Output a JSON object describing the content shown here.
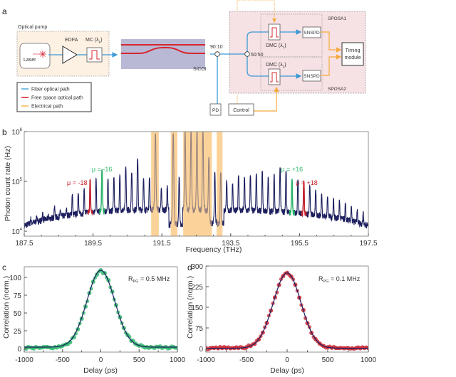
{
  "panel_labels": {
    "a": "a",
    "b": "b",
    "c": "c",
    "d": "d"
  },
  "diagram": {
    "optical_pump": "Optical pump",
    "laser": "Laser",
    "edfa": "EDFA",
    "mc": "MC (λ",
    "mc_sub": "p",
    "mc_close": ")",
    "chip": "SiCOI",
    "splitter1": "90:10",
    "splitter2": "50:50",
    "dmc1": "DMC (λ",
    "dmc1_sub": "1",
    "dmc1_close": ")",
    "dmc2": "DMC (λ",
    "dmc2_sub": "2",
    "dmc2_close": ")",
    "snspd1": "SNSPD",
    "snspd2": "SNSPD",
    "timing1": "Timing",
    "timing2": "module",
    "sposa1": "SPOSA1",
    "sposa2": "SPOSA2",
    "pd": "PD",
    "control": "Control",
    "legend": [
      {
        "label": "Fiber optical path",
        "color": "#3b9ad6"
      },
      {
        "label": "Free space optical path",
        "color": "#d7262e"
      },
      {
        "label": "Electrical path",
        "color": "#f5a93b"
      }
    ]
  },
  "colors": {
    "fiber": "#3b9ad6",
    "free_space": "#d7262e",
    "electrical": "#f5a93b",
    "spectrum": "#1d1f5e",
    "green": "#2bb56a",
    "red": "#c8202c",
    "band": "#fbd39a"
  },
  "chart_data": [
    {
      "panel": "b",
      "type": "line",
      "xlabel": "Frequency (THz)",
      "ylabel": "Photon count rate (Hz)",
      "xlim": [
        187.5,
        197.5
      ],
      "ylim": [
        8000,
        1000000
      ],
      "yscale": "log",
      "xticks": [
        "187.5",
        "189.5",
        "191.5",
        "193.5",
        "195.5",
        "197.5"
      ],
      "yticks": [
        {
          "base": "10",
          "exp": "4"
        },
        {
          "base": "10",
          "exp": "5"
        },
        {
          "base": "10",
          "exp": "6"
        }
      ],
      "comb_center_thz": 192.52,
      "comb_spacing_thz": 0.1725,
      "mode_range": [
        -28,
        29
      ],
      "peak_rates": [
        18000,
        20000,
        23000,
        20000,
        32000,
        26000,
        28000,
        55000,
        60000,
        70000,
        105000,
        115000,
        170000,
        110000,
        120000,
        130000,
        190000,
        150000,
        280000,
        110000,
        120000,
        900000,
        70000,
        80000,
        900000,
        120000,
        1000000,
        1000000,
        1000000,
        1000000,
        300000,
        150000,
        150000,
        100000,
        90000,
        130000,
        120000,
        130000,
        140000,
        160000,
        120000,
        140000,
        190000,
        160000,
        110000,
        105000,
        100000,
        80000,
        65000,
        55000,
        50000,
        45000,
        40000,
        35000,
        30000,
        26000,
        24000,
        22000
      ],
      "filtered_bands_thz": [
        [
          191.19,
          191.41
        ],
        [
          191.76,
          191.95
        ],
        [
          192.12,
          192.95
        ],
        [
          193.09,
          193.26
        ]
      ],
      "annotations": [
        {
          "text": "μ = -18",
          "mode": -18,
          "color": "#c8202c"
        },
        {
          "text": "μ = -16",
          "mode": -16,
          "color": "#2bb56a"
        },
        {
          "text": "μ = +16",
          "mode": 16,
          "color": "#2bb56a"
        },
        {
          "text": "μ = +18",
          "mode": 18,
          "color": "#c8202c"
        }
      ]
    },
    {
      "panel": "c",
      "type": "scatter",
      "xlabel": "Delay (ps)",
      "ylabel": "Correlation (norm.)",
      "xlim": [
        -1000,
        1000
      ],
      "ylim": [
        -5,
        115
      ],
      "xticks": [
        "-1000",
        "-500",
        "0",
        "500",
        "1000"
      ],
      "yticks": [
        "0",
        "25",
        "50",
        "75",
        "100"
      ],
      "annotation": {
        "main": "R",
        "sub": "PG",
        "rest": " = 0.5 MHz"
      },
      "x_step_ps": 50,
      "points": [
        1,
        2,
        1,
        2,
        1,
        2,
        2,
        1,
        2,
        3,
        4,
        6,
        9,
        16,
        27,
        42,
        59,
        78,
        94,
        104,
        110,
        106,
        96,
        80,
        61,
        44,
        29,
        19,
        11,
        7,
        4,
        3,
        2,
        2,
        1,
        2,
        1,
        2,
        1,
        2,
        1
      ],
      "fit": {
        "type": "gaussian",
        "amplitude": 108,
        "center": 0,
        "sigma": 180,
        "offset": 2
      },
      "marker_color": "#2bb56a",
      "fit_color": "#1d1f5e"
    },
    {
      "panel": "d",
      "type": "scatter",
      "xlabel": "Delay (ps)",
      "ylabel": "Correlation (norm.)",
      "xlim": [
        -1000,
        1000
      ],
      "ylim": [
        -13,
        300
      ],
      "xticks": [
        "-1000",
        "-500",
        "0",
        "500",
        "1000"
      ],
      "yticks": [
        "0",
        "75",
        "150",
        "225",
        "300"
      ],
      "annotation": {
        "main": "R",
        "sub": "PG",
        "rest": " = 0.1 MHz"
      },
      "x_step_ps": 50,
      "points": [
        2,
        1,
        2,
        1,
        2,
        2,
        1,
        2,
        2,
        3,
        5,
        9,
        17,
        33,
        58,
        93,
        138,
        186,
        231,
        263,
        275,
        262,
        232,
        185,
        140,
        92,
        57,
        34,
        18,
        9,
        5,
        3,
        2,
        2,
        1,
        2,
        1,
        2,
        1,
        2,
        2
      ],
      "fit": {
        "type": "gaussian",
        "amplitude": 274,
        "center": 0,
        "sigma": 170,
        "offset": 1
      },
      "marker_color": "#c8202c",
      "fit_color": "#1d1f5e"
    }
  ]
}
